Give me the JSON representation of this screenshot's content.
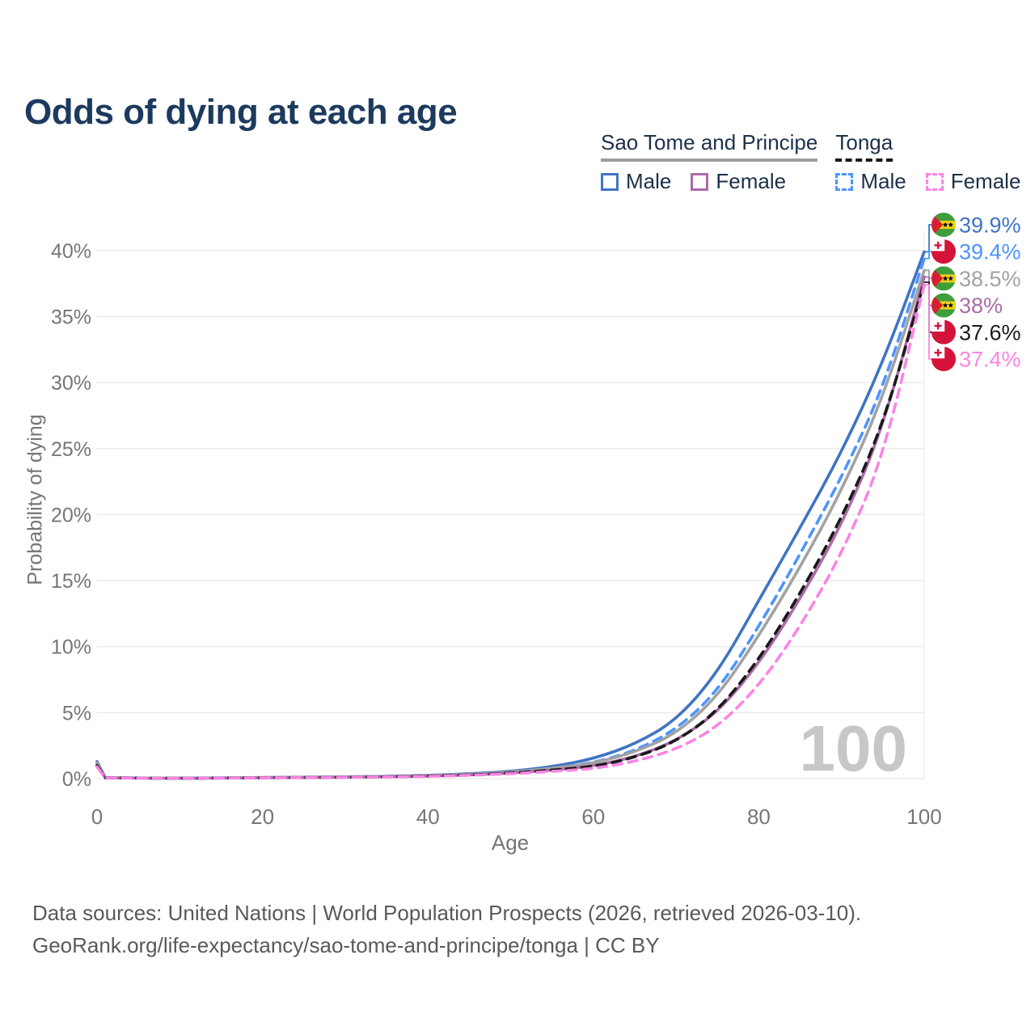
{
  "title": "Odds of dying at each age",
  "legend": {
    "groups": [
      {
        "name": "Sao Tome and Principe",
        "underline_style": "solid",
        "underline_color": "#9e9e9e",
        "items": [
          {
            "label": "Male",
            "color": "#4074c4",
            "dashed": false
          },
          {
            "label": "Female",
            "color": "#ac6ba8",
            "dashed": false
          }
        ]
      },
      {
        "name": "Tonga",
        "underline_style": "dashed",
        "underline_color": "#191919",
        "items": [
          {
            "label": "Male",
            "color": "#4d94ff",
            "dashed": true
          },
          {
            "label": "Female",
            "color": "#fb84e4",
            "dashed": true
          }
        ]
      }
    ]
  },
  "chart_data": {
    "type": "line",
    "title": "Odds of dying at each age",
    "xlabel": "Age",
    "ylabel": "Probability of dying",
    "xlim": [
      0,
      100
    ],
    "ylim": [
      0,
      40
    ],
    "grid": true,
    "legend_position": "top-right",
    "x_ticks": [
      0,
      20,
      40,
      60,
      80,
      100
    ],
    "x_tick_labels": [
      "0",
      "20",
      "40",
      "60",
      "80",
      "100"
    ],
    "y_ticks": [
      0,
      5,
      10,
      15,
      20,
      25,
      30,
      35,
      40
    ],
    "y_tick_labels": [
      "0%",
      "5%",
      "10%",
      "15%",
      "20%",
      "25%",
      "30%",
      "35%",
      "40%"
    ],
    "hover_age_label": "100",
    "x": [
      0,
      1,
      5,
      10,
      15,
      20,
      25,
      30,
      35,
      40,
      45,
      50,
      55,
      60,
      65,
      70,
      75,
      80,
      85,
      90,
      95,
      100
    ],
    "series": [
      {
        "name": "Sao Tome and Principe — Male",
        "country": "Sao Tome and Principe",
        "sex": "Male",
        "color": "#4074c4",
        "dashed": false,
        "end_label": "39.9%",
        "flag": "sao-tome-and-principe",
        "values": [
          1.3,
          0.09,
          0.05,
          0.04,
          0.06,
          0.09,
          0.11,
          0.14,
          0.18,
          0.25,
          0.36,
          0.55,
          0.9,
          1.5,
          2.6,
          4.4,
          8.0,
          13.5,
          19.0,
          24.7,
          31.5,
          39.9
        ]
      },
      {
        "name": "Tonga — Male",
        "country": "Tonga",
        "sex": "Male",
        "color": "#4d94ff",
        "dashed": true,
        "end_label": "39.4%",
        "flag": "tonga",
        "values": [
          1.1,
          0.08,
          0.045,
          0.035,
          0.05,
          0.08,
          0.1,
          0.12,
          0.16,
          0.22,
          0.31,
          0.47,
          0.75,
          1.2,
          2.1,
          3.7,
          6.6,
          11.5,
          17.0,
          22.8,
          29.5,
          39.4
        ]
      },
      {
        "name": "Sao Tome and Principe — All",
        "country": "Sao Tome and Principe",
        "sex": "All",
        "color": "#a2a2a2",
        "dashed": false,
        "end_label": "38.5%",
        "flag": "sao-tome-and-principe",
        "values": [
          1.2,
          0.08,
          0.045,
          0.035,
          0.05,
          0.08,
          0.1,
          0.12,
          0.16,
          0.22,
          0.32,
          0.49,
          0.78,
          1.15,
          2.0,
          3.4,
          6.2,
          10.8,
          16.0,
          21.8,
          28.8,
          38.5
        ]
      },
      {
        "name": "Sao Tome and Principe — Female",
        "country": "Sao Tome and Principe",
        "sex": "Female",
        "color": "#ac6ba8",
        "dashed": false,
        "end_label": "38%",
        "flag": "sao-tome-and-principe",
        "values": [
          1.0,
          0.07,
          0.04,
          0.03,
          0.045,
          0.07,
          0.09,
          0.11,
          0.14,
          0.19,
          0.28,
          0.43,
          0.65,
          0.95,
          1.65,
          2.85,
          5.0,
          8.7,
          13.6,
          19.2,
          26.5,
          38.0
        ]
      },
      {
        "name": "Tonga — All",
        "country": "Tonga",
        "sex": "All",
        "color": "#1a1a1a",
        "dashed": true,
        "end_label": "37.6%",
        "flag": "tonga",
        "values": [
          1.0,
          0.07,
          0.04,
          0.03,
          0.045,
          0.07,
          0.09,
          0.11,
          0.14,
          0.19,
          0.27,
          0.41,
          0.65,
          0.9,
          1.6,
          2.8,
          5.1,
          9.0,
          14.0,
          19.7,
          26.7,
          37.6
        ]
      },
      {
        "name": "Tonga — Female",
        "country": "Tonga",
        "sex": "Female",
        "color": "#fb84e4",
        "dashed": true,
        "end_label": "37.4%",
        "flag": "tonga",
        "values": [
          0.9,
          0.06,
          0.035,
          0.028,
          0.04,
          0.06,
          0.08,
          0.1,
          0.13,
          0.17,
          0.25,
          0.37,
          0.55,
          0.75,
          1.3,
          2.2,
          3.9,
          7.0,
          11.5,
          17.0,
          24.2,
          37.4
        ]
      }
    ]
  },
  "flag_colors": {
    "stp_green": "#3f9e3a",
    "stp_yellow": "#f5d216",
    "stp_red": "#d62031",
    "stp_star": "#111111",
    "tonga_red": "#d4123a",
    "tonga_white": "#ffffff"
  },
  "ui_colors": {
    "title": "#1c3a5e",
    "legend_text": "#1d3049",
    "axis_text": "#767676",
    "gridline": "#ebebeb",
    "watermark": "#c7c7c7",
    "footer_text": "#595959"
  },
  "footer": {
    "line1": "Data sources: United Nations | World Population Prospects (2026, retrieved 2026-03-10).",
    "line2": "GeoRank.org/life-expectancy/sao-tome-and-principe/tonga | CC BY"
  }
}
